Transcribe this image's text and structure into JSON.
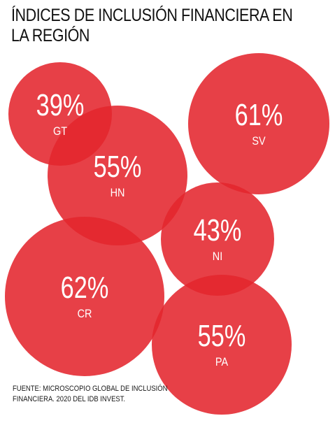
{
  "title_lines": [
    "ÍNDICES DE INCLUSIÓN FINANCIERA EN",
    "LA REGIÓN"
  ],
  "source_lines": [
    "FUENTE: MICROSCOPIO GLOBAL DE INCLUSIÓN",
    "FINANCIERA. 2020 DEL IDB INVEST."
  ],
  "colors": {
    "bubble": "#e4252d",
    "text_on_bubble": "#ffffff",
    "title": "#111111"
  },
  "chart_data": {
    "type": "bubble",
    "title": "ÍNDICES DE INCLUSIÓN FINANCIERA EN LA REGIÓN",
    "unit": "%",
    "series": [
      {
        "country": "GT",
        "value": 39,
        "label": "39%"
      },
      {
        "country": "HN",
        "value": 55,
        "label": "55%"
      },
      {
        "country": "SV",
        "value": 61,
        "label": "61%"
      },
      {
        "country": "NI",
        "value": 43,
        "label": "43%"
      },
      {
        "country": "CR",
        "value": 62,
        "label": "62%"
      },
      {
        "country": "PA",
        "value": 55,
        "label": "55%"
      }
    ]
  }
}
